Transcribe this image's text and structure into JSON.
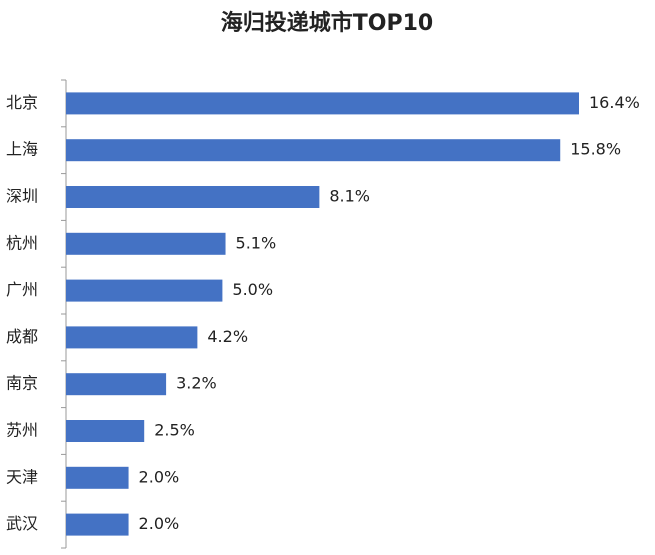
{
  "chart_data": {
    "type": "hbar",
    "title": "海归投递城市TOP10",
    "categories": [
      "北京",
      "上海",
      "深圳",
      "杭州",
      "广州",
      "成都",
      "南京",
      "苏州",
      "天津",
      "武汉"
    ],
    "values": [
      16.4,
      15.8,
      8.1,
      5.1,
      5.0,
      4.2,
      3.2,
      2.5,
      2.0,
      2.0
    ],
    "value_labels": [
      "16.4%",
      "15.8%",
      "8.1%",
      "5.1%",
      "5.0%",
      "4.2%",
      "3.2%",
      "2.5%",
      "2.0%",
      "2.0%"
    ],
    "color": "#4472c4"
  }
}
